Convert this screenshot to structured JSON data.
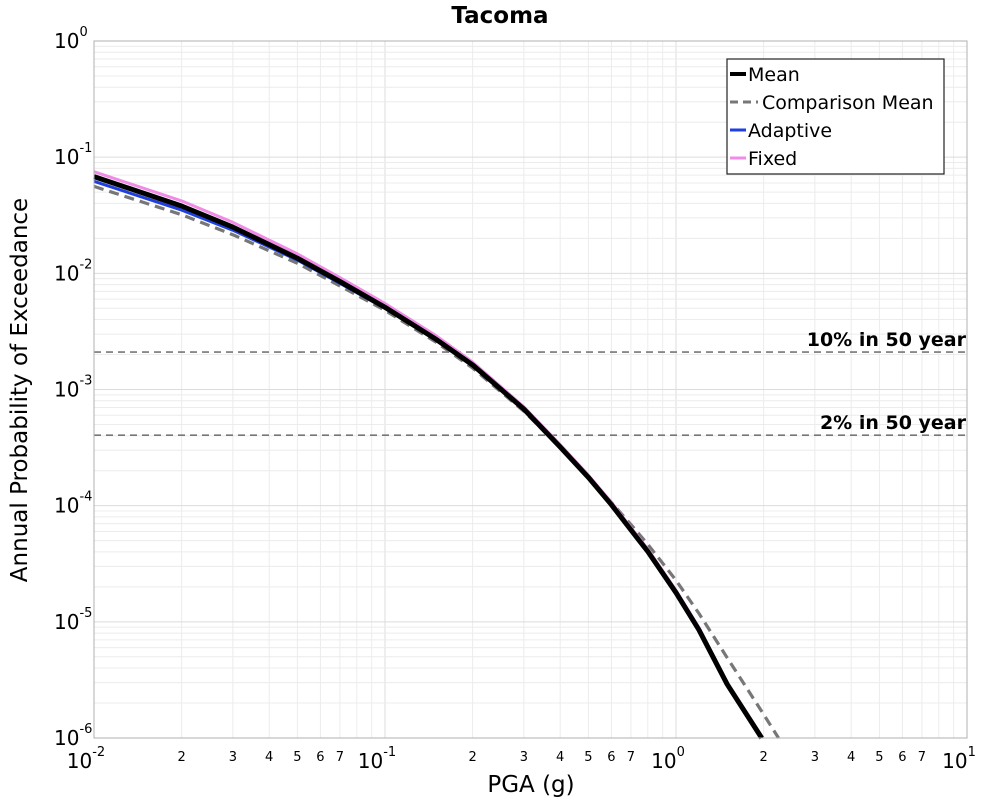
{
  "chart_data": {
    "type": "line",
    "title": "Tacoma",
    "xlabel": "PGA (g)",
    "ylabel": "Annual Probability of Exceedance",
    "x_scale": "log",
    "y_scale": "log",
    "xlim": [
      0.01,
      10
    ],
    "ylim": [
      1e-06,
      1
    ],
    "x_major_ticks": [
      {
        "base": "10",
        "exp": "-2"
      },
      {
        "base": "10",
        "exp": "-1"
      },
      {
        "base": "10",
        "exp": "0"
      },
      {
        "base": "10",
        "exp": "1"
      }
    ],
    "y_major_ticks": [
      {
        "base": "10",
        "exp": "0"
      },
      {
        "base": "10",
        "exp": "-1"
      },
      {
        "base": "10",
        "exp": "-2"
      },
      {
        "base": "10",
        "exp": "-3"
      },
      {
        "base": "10",
        "exp": "-4"
      },
      {
        "base": "10",
        "exp": "-5"
      },
      {
        "base": "10",
        "exp": "-6"
      }
    ],
    "x_minor_tick_labels": [
      "2",
      "3",
      "4",
      "5",
      "6",
      "7"
    ],
    "grid": true,
    "legend_position": "top-right",
    "reference_lines": [
      {
        "label": "10% in 50 year",
        "y": 0.0021,
        "color": "#777777"
      },
      {
        "label": "2% in 50 year",
        "y": 0.000404,
        "color": "#777777"
      }
    ],
    "series": [
      {
        "name": "Mean",
        "color": "#000000",
        "style": "solid",
        "x": [
          0.01,
          0.02,
          0.03,
          0.05,
          0.07,
          0.1,
          0.15,
          0.2,
          0.3,
          0.4,
          0.5,
          0.6,
          0.7,
          0.8,
          1.0,
          1.2,
          1.5,
          1.97
        ],
        "y": [
          0.068,
          0.038,
          0.025,
          0.0135,
          0.0085,
          0.0051,
          0.0027,
          0.00163,
          0.00068,
          0.00032,
          0.000175,
          0.000102,
          6.18e-05,
          4.03e-05,
          1.78e-05,
          8.5e-06,
          2.9e-06,
          1e-06
        ]
      },
      {
        "name": "Comparison Mean",
        "color": "#777777",
        "style": "dashed",
        "x": [
          0.01,
          0.02,
          0.03,
          0.05,
          0.07,
          0.1,
          0.15,
          0.2,
          0.3,
          0.4,
          0.5,
          0.6,
          0.7,
          0.8,
          1.0,
          1.2,
          1.5,
          2.0,
          2.25
        ],
        "y": [
          0.056,
          0.032,
          0.0215,
          0.0122,
          0.0078,
          0.0048,
          0.00255,
          0.00153,
          0.00065,
          0.00032,
          0.000178,
          0.000107,
          6.89e-05,
          4.65e-05,
          2.28e-05,
          1.18e-05,
          4.9e-06,
          1.6e-06,
          1e-06
        ]
      },
      {
        "name": "Adaptive",
        "color": "#1f3fe0",
        "style": "solid",
        "x": [
          0.01,
          0.02,
          0.03,
          0.05,
          0.07,
          0.1,
          0.15,
          0.2,
          0.3,
          0.4,
          0.5,
          0.6,
          0.7,
          0.8,
          1.0,
          1.2,
          1.5,
          1.97
        ],
        "y": [
          0.062,
          0.035,
          0.0235,
          0.013,
          0.0082,
          0.005,
          0.00267,
          0.00162,
          0.00068,
          0.00032,
          0.000175,
          0.000102,
          6.18e-05,
          4.03e-05,
          1.78e-05,
          8.5e-06,
          2.9e-06,
          1e-06
        ]
      },
      {
        "name": "Fixed",
        "color": "#f08ce8",
        "style": "solid",
        "x": [
          0.01,
          0.02,
          0.03,
          0.05,
          0.07,
          0.1,
          0.15,
          0.2,
          0.3,
          0.4,
          0.5,
          0.6,
          0.7,
          0.8,
          1.0,
          1.2,
          1.5,
          1.99
        ],
        "y": [
          0.075,
          0.042,
          0.0275,
          0.0147,
          0.0092,
          0.0055,
          0.0029,
          0.00172,
          0.00071,
          0.000335,
          0.000183,
          0.000107,
          6.48e-05,
          4.23e-05,
          1.87e-05,
          8.9e-06,
          3e-06,
          1e-06
        ]
      }
    ]
  }
}
